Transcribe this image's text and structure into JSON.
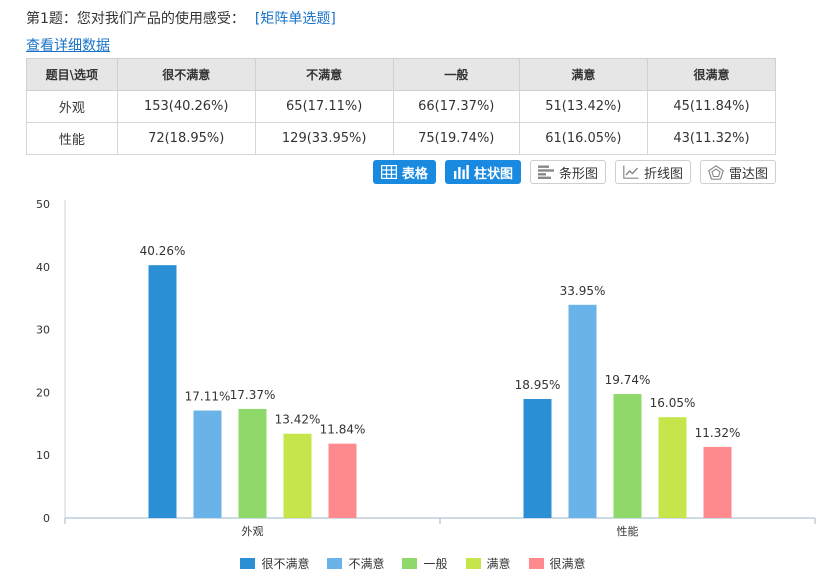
{
  "question": {
    "title": "第1题：您对我们产品的使用感受：",
    "type": "[矩阵单选题]"
  },
  "detail_link": "查看详细数据",
  "table": {
    "header": [
      "题目\\选项",
      "很不满意",
      "不满意",
      "一般",
      "满意",
      "很满意"
    ],
    "rows": [
      [
        "外观",
        "153(40.26%)",
        "65(17.11%)",
        "66(17.37%)",
        "51(13.42%)",
        "45(11.84%)"
      ],
      [
        "性能",
        "72(18.95%)",
        "129(33.95%)",
        "75(19.74%)",
        "61(16.05%)",
        "43(11.32%)"
      ]
    ]
  },
  "view_buttons": [
    {
      "label": "表格",
      "icon": "table-icon",
      "active": true
    },
    {
      "label": "柱状图",
      "icon": "bar-chart-icon",
      "active": true
    },
    {
      "label": "条形图",
      "icon": "horizontal-bar-icon",
      "active": false
    },
    {
      "label": "折线图",
      "icon": "line-chart-icon",
      "active": false
    },
    {
      "label": "雷达图",
      "icon": "radar-chart-icon",
      "active": false
    }
  ],
  "chart_data": {
    "type": "bar",
    "categories": [
      "外观",
      "性能"
    ],
    "ylim": [
      0,
      50
    ],
    "yticks": [
      0,
      10,
      20,
      30,
      40,
      50
    ],
    "series": [
      {
        "name": "很不满意",
        "values": [
          40.26,
          18.95
        ],
        "labels": [
          "40.26%",
          "18.95%"
        ],
        "color": "#2b8fd6"
      },
      {
        "name": "不满意",
        "values": [
          17.11,
          33.95
        ],
        "labels": [
          "17.11%",
          "33.95%"
        ],
        "color": "#6ab3e8"
      },
      {
        "name": "一般",
        "values": [
          17.37,
          19.74
        ],
        "labels": [
          "17.37%",
          "19.74%"
        ],
        "color": "#8fd96a"
      },
      {
        "name": "满意",
        "values": [
          13.42,
          16.05
        ],
        "labels": [
          "13.42%",
          "16.05%"
        ],
        "color": "#c5e54a"
      },
      {
        "name": "很满意",
        "values": [
          11.84,
          11.32
        ],
        "labels": [
          "11.84%",
          "11.32%"
        ],
        "color": "#ff8a8e"
      }
    ],
    "legend_position": "bottom",
    "grid": false
  }
}
